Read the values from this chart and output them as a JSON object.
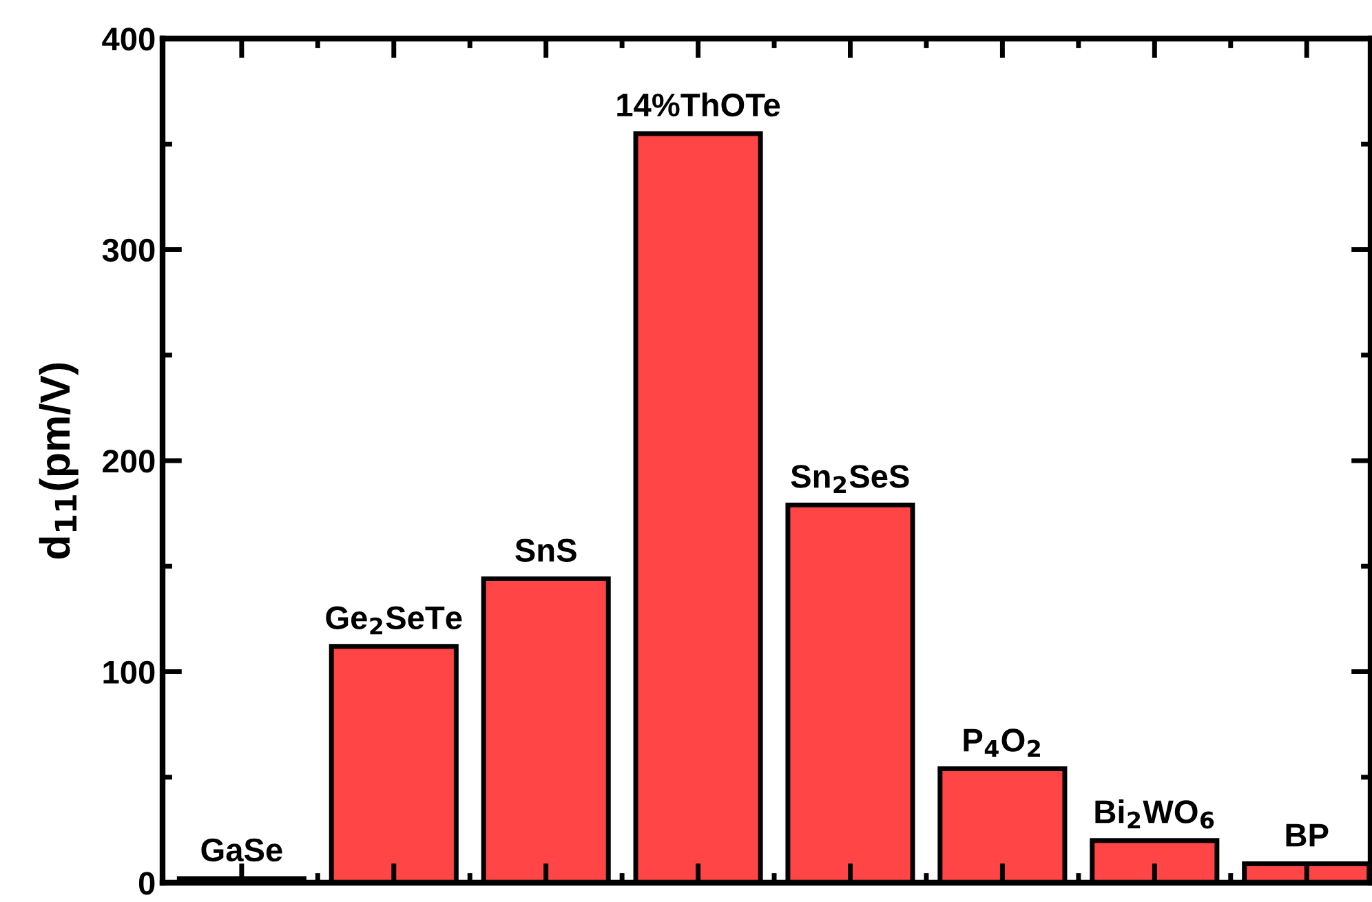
{
  "chart_data": {
    "type": "bar",
    "ylabel": "d$_{11}$(pm/V)",
    "categories": [
      "GaSe",
      "Ge$_{2}$SeTe",
      "SnS",
      "14%ThOTe",
      "Sn$_{2}$SeS",
      "P$_{4}$O$_{2}$",
      "Bi$_{2}$WO$_{6}$",
      "BP"
    ],
    "values": [
      2,
      112,
      144,
      355,
      179,
      54,
      20,
      9
    ],
    "color": "#ff4545",
    "ylim": [
      0,
      400
    ],
    "yticks": [
      0,
      100,
      200,
      300,
      400
    ],
    "tick_labels": "y",
    "grid": false,
    "legend": false
  }
}
